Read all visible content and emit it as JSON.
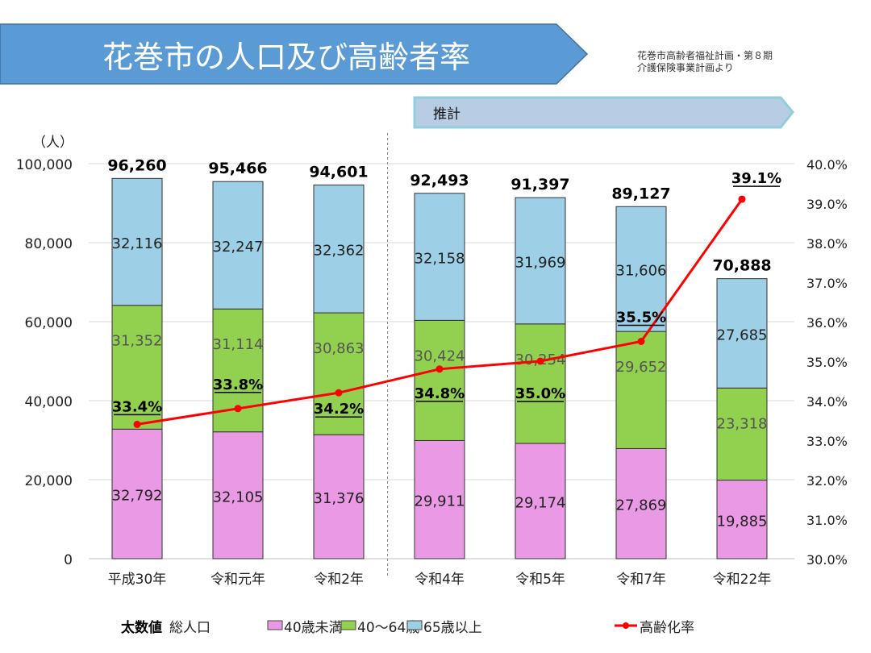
{
  "title": "花巻市の人口及び高齢者率",
  "source_lines": [
    "花巻市高齢者福祉計画・第８期",
    "介護保険事業計画より"
  ],
  "projection_label": "推計",
  "chart_data": {
    "type": "bar",
    "stacked": true,
    "title": "花巻市の人口及び高齢者率",
    "ylabel": "（人）",
    "ylim": [
      0,
      100000
    ],
    "y_ticks": [
      "0",
      "20,000",
      "40,000",
      "60,000",
      "80,000",
      "100,000"
    ],
    "y2lim": [
      30.0,
      40.0
    ],
    "y2_ticks": [
      "30.0%",
      "31.0%",
      "32.0%",
      "33.0%",
      "34.0%",
      "35.0%",
      "36.0%",
      "37.0%",
      "38.0%",
      "39.0%",
      "40.0%"
    ],
    "grid": true,
    "categories": [
      "平成30年",
      "令和元年",
      "令和2年",
      "令和4年",
      "令和5年",
      "令和7年",
      "令和22年"
    ],
    "projection_start_index": 3,
    "series": [
      {
        "name": "40歳未満",
        "color": "#ea9ae4",
        "values": [
          32792,
          32105,
          31376,
          29911,
          29174,
          27869,
          19885
        ],
        "labels": [
          "32,792",
          "32,105",
          "31,376",
          "29,911",
          "29,174",
          "27,869",
          "19,885"
        ]
      },
      {
        "name": "40～64歳",
        "color": "#92d050",
        "values": [
          31352,
          31114,
          30863,
          30424,
          30254,
          29652,
          23318
        ],
        "labels": [
          "31,352",
          "31,114",
          "30,863",
          "30,424",
          "30,254",
          "29,652",
          "23,318"
        ]
      },
      {
        "name": "65歳以上",
        "color": "#9dcfe6",
        "values": [
          32116,
          32247,
          32362,
          32158,
          31969,
          31606,
          27685
        ],
        "labels": [
          "32,116",
          "32,247",
          "32,362",
          "32,158",
          "31,969",
          "31,606",
          "27,685"
        ]
      }
    ],
    "totals": {
      "name": "総人口",
      "values": [
        96260,
        95466,
        94601,
        92493,
        91397,
        89127,
        70888
      ],
      "labels": [
        "96,260",
        "95,466",
        "94,601",
        "92,493",
        "91,397",
        "89,127",
        "70,888"
      ]
    },
    "line": {
      "name": "高齢化率",
      "color": "#ff0000",
      "axis": "right",
      "values": [
        33.4,
        33.8,
        34.2,
        34.8,
        35.0,
        35.5,
        39.1
      ],
      "labels": [
        "33.4%",
        "33.8%",
        "34.2%",
        "34.8%",
        "35.0%",
        "35.5%",
        "39.1%"
      ]
    },
    "legend": {
      "placement": "bottom",
      "bold_note": "太数値",
      "note": "総人口",
      "items": [
        "40歳未満",
        "40～64歳",
        "65歳以上",
        "高齢化率"
      ]
    }
  }
}
